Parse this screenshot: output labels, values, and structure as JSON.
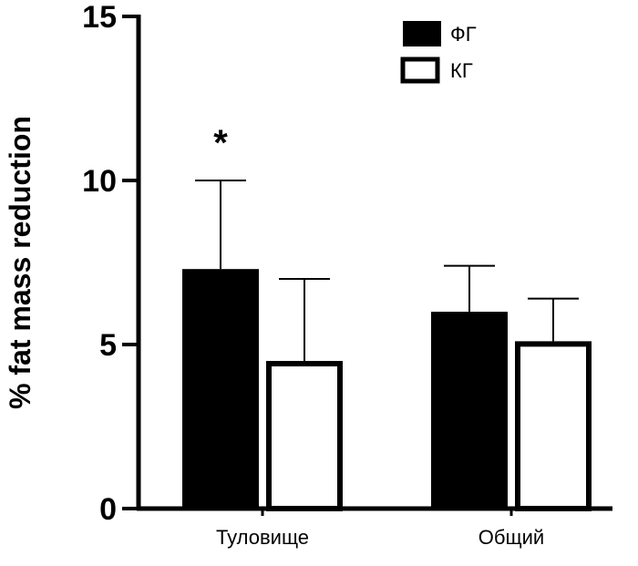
{
  "chart_data": {
    "type": "bar",
    "title": "",
    "xlabel": "",
    "ylabel": "% fat mass reduction",
    "ylim": [
      0,
      15
    ],
    "yticks": [
      0,
      5,
      10,
      15
    ],
    "categories": [
      "Туловище",
      "Общий"
    ],
    "series": [
      {
        "name": "ФГ",
        "values": [
          7.3,
          6.0
        ],
        "errors": [
          2.7,
          1.4
        ],
        "fill": "#000000"
      },
      {
        "name": "КГ",
        "values": [
          4.5,
          5.1
        ],
        "errors": [
          2.5,
          1.3
        ],
        "fill": "#ffffff"
      }
    ],
    "annotations": [
      {
        "text": "*",
        "category": "Туловище",
        "series": "ФГ"
      }
    ],
    "legend_position": "top-right",
    "grid": false
  }
}
